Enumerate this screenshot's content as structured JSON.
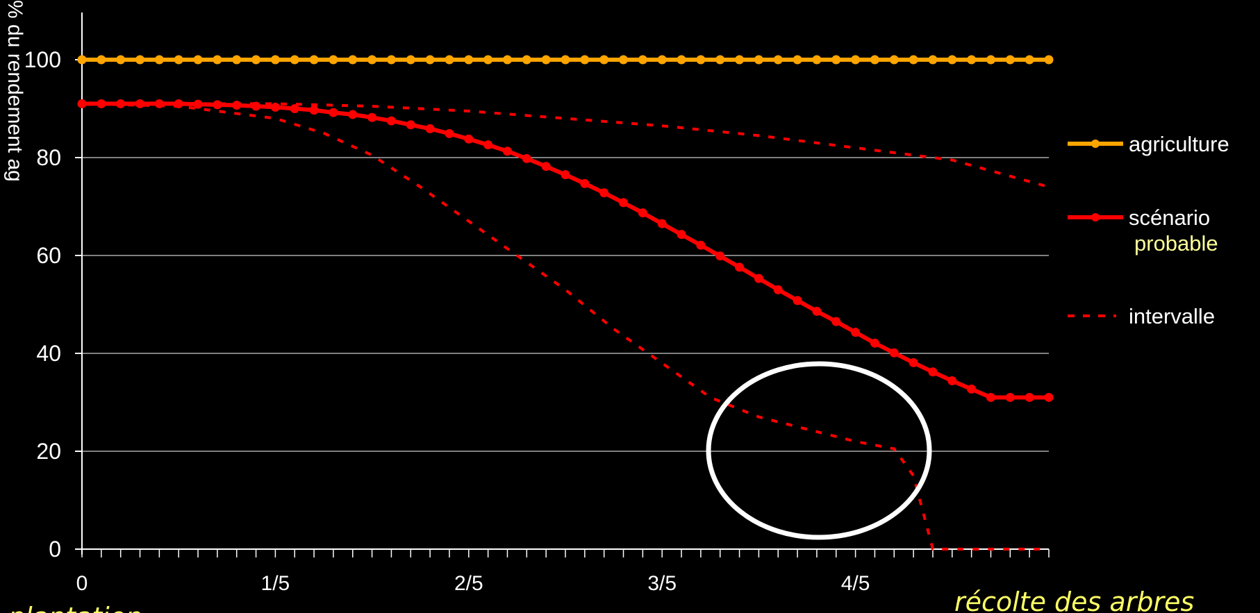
{
  "chart_data": {
    "type": "line",
    "ylabel": "% du rendement ag",
    "ylim": [
      0,
      100
    ],
    "yticks": [
      0,
      20,
      40,
      60,
      80,
      100
    ],
    "x_tick_labels": [
      "0",
      "1/5",
      "2/5",
      "3/5",
      "4/5"
    ],
    "x_end_label": "récolte des arbres",
    "x_start_label": "plantation",
    "grid": true,
    "legend_position": "right",
    "series": [
      {
        "name": "agriculture",
        "color": "#ffa500",
        "style": "solid-markers",
        "x": [
          0,
          0.02,
          0.04,
          0.06,
          0.08,
          0.1,
          0.12,
          0.14,
          0.16,
          0.18,
          0.2,
          0.22,
          0.24,
          0.26,
          0.28,
          0.3,
          0.32,
          0.34,
          0.36,
          0.38,
          0.4,
          0.42,
          0.44,
          0.46,
          0.48,
          0.5,
          0.52,
          0.54,
          0.56,
          0.58,
          0.6,
          0.62,
          0.64,
          0.66,
          0.68,
          0.7,
          0.72,
          0.74,
          0.76,
          0.78,
          0.8,
          0.82,
          0.84,
          0.86,
          0.88,
          0.9,
          0.92,
          0.94,
          0.96,
          0.98,
          1.0
        ],
        "y": [
          100,
          100,
          100,
          100,
          100,
          100,
          100,
          100,
          100,
          100,
          100,
          100,
          100,
          100,
          100,
          100,
          100,
          100,
          100,
          100,
          100,
          100,
          100,
          100,
          100,
          100,
          100,
          100,
          100,
          100,
          100,
          100,
          100,
          100,
          100,
          100,
          100,
          100,
          100,
          100,
          100,
          100,
          100,
          100,
          100,
          100,
          100,
          100,
          100,
          100,
          100
        ]
      },
      {
        "name": "scénario",
        "name_line2": "probable",
        "color": "#ff0000",
        "style": "solid-markers",
        "x": [
          0,
          0.02,
          0.04,
          0.06,
          0.08,
          0.1,
          0.12,
          0.14,
          0.16,
          0.18,
          0.2,
          0.22,
          0.24,
          0.26,
          0.28,
          0.3,
          0.32,
          0.34,
          0.36,
          0.38,
          0.4,
          0.42,
          0.44,
          0.46,
          0.48,
          0.5,
          0.52,
          0.54,
          0.56,
          0.58,
          0.6,
          0.62,
          0.64,
          0.66,
          0.68,
          0.7,
          0.72,
          0.74,
          0.76,
          0.78,
          0.8,
          0.82,
          0.84,
          0.86,
          0.88,
          0.9,
          0.92,
          0.94,
          0.96,
          0.98,
          1.0
        ],
        "y": [
          91,
          91,
          91,
          91,
          91,
          91,
          90.9,
          90.8,
          90.7,
          90.5,
          90.3,
          90.0,
          89.7,
          89.2,
          88.8,
          88.2,
          87.5,
          86.7,
          85.9,
          84.9,
          83.8,
          82.6,
          81.3,
          79.8,
          78.2,
          76.5,
          74.7,
          72.8,
          70.8,
          68.7,
          66.5,
          64.3,
          62.1,
          59.9,
          57.6,
          55.3,
          53.0,
          50.8,
          48.6,
          46.5,
          44.3,
          42.1,
          40.1,
          38.1,
          36.2,
          34.4,
          32.7,
          31.0,
          31.0,
          31.0,
          31.0
        ]
      },
      {
        "name": "intervalle",
        "color": "#ff0000",
        "style": "dashed",
        "x": [
          0,
          0.1,
          0.2,
          0.3,
          0.4,
          0.5,
          0.6,
          0.7,
          0.8,
          0.9,
          1.0
        ],
        "y": [
          91,
          91,
          91,
          90.5,
          89.5,
          88,
          86.5,
          84.5,
          82,
          79.5,
          74
        ]
      },
      {
        "name": "",
        "color": "#ff0000",
        "style": "dashed",
        "x": [
          0,
          0.1,
          0.2,
          0.25,
          0.3,
          0.35,
          0.4,
          0.45,
          0.5,
          0.55,
          0.6,
          0.65,
          0.7,
          0.75,
          0.8,
          0.84,
          0.86,
          0.88,
          0.9,
          0.95,
          1.0
        ],
        "y": [
          91,
          90.5,
          88,
          85,
          80.5,
          74,
          67,
          60,
          53,
          45,
          38,
          31,
          27,
          24.5,
          22,
          20.5,
          15,
          0,
          0,
          0,
          0
        ]
      }
    ]
  }
}
